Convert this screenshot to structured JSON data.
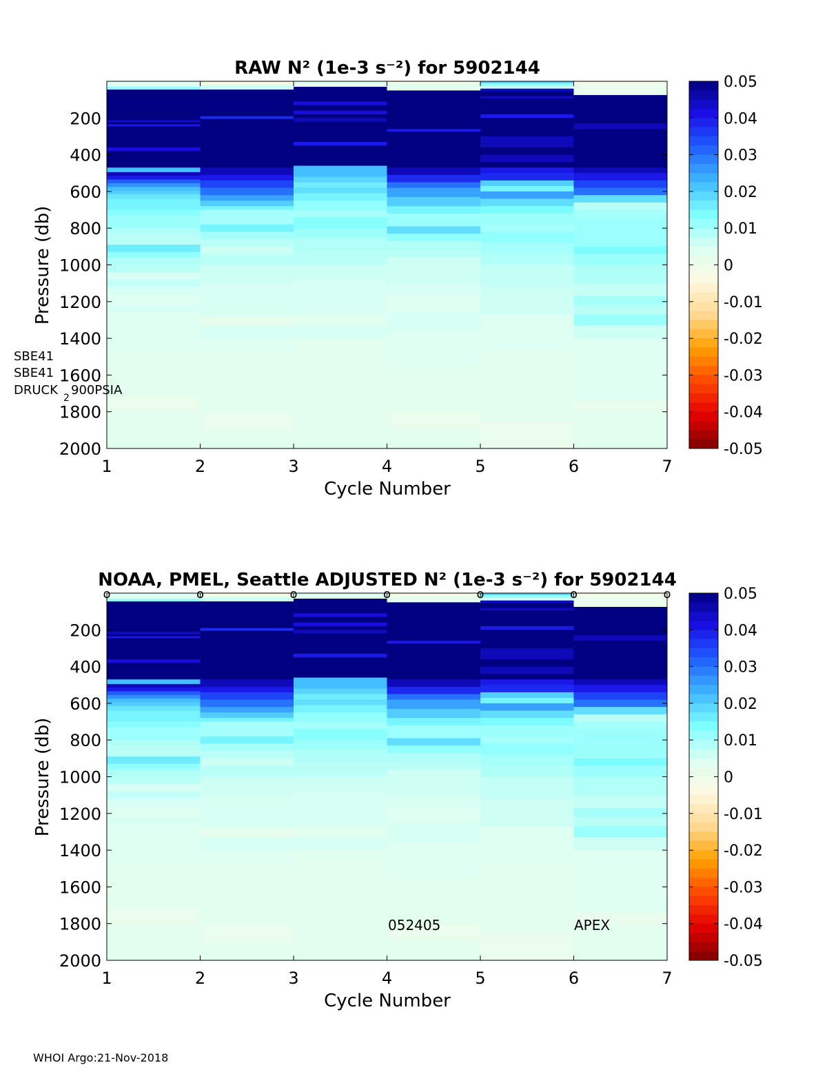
{
  "colorbar": {
    "ticks": [
      "0.05",
      "0.04",
      "0.03",
      "0.02",
      "0.01",
      "0",
      "-0.01",
      "-0.02",
      "-0.03",
      "-0.04",
      "-0.05"
    ],
    "stops": [
      "#7f0000",
      "#e30000",
      "#ff4800",
      "#ffa000",
      "#ffd890",
      "#fff8e0",
      "#dcfff2",
      "#80ffff",
      "#40b8ff",
      "#2060ff",
      "#1a10e8",
      "#000080"
    ]
  },
  "footer": "WHOI Argo:21-Nov-2018",
  "chart_data": [
    {
      "type": "heatmap",
      "title": "RAW N² (1e-3 s⁻²) for 5902144",
      "xlabel": "Cycle Number",
      "ylabel": "Pressure (db)",
      "xlim": [
        1,
        7
      ],
      "ylim": [
        2000,
        0
      ],
      "clim": [
        -0.05,
        0.05
      ],
      "x_ticks": [
        "1",
        "2",
        "3",
        "4",
        "5",
        "6",
        "7"
      ],
      "y_ticks": [
        "200",
        "400",
        "600",
        "800",
        "1000",
        "1200",
        "1400",
        "1600",
        "1800",
        "2000"
      ],
      "side_labels": [
        "SBE41",
        "SBE41",
        "DRUCK",
        "2",
        "900PSIA"
      ],
      "columns": [
        {
          "cycle": 1,
          "bands": [
            [
              0,
              30,
              0.004
            ],
            [
              30,
              45,
              0.012
            ],
            [
              45,
              210,
              0.05
            ],
            [
              210,
              225,
              0.045
            ],
            [
              225,
              235,
              0.05
            ],
            [
              235,
              245,
              0.04
            ],
            [
              245,
              360,
              0.05
            ],
            [
              360,
              380,
              0.042
            ],
            [
              380,
              470,
              0.05
            ],
            [
              470,
              495,
              0.022
            ],
            [
              495,
              515,
              0.045
            ],
            [
              515,
              535,
              0.04
            ],
            [
              535,
              555,
              0.032
            ],
            [
              555,
              575,
              0.027
            ],
            [
              575,
              595,
              0.022
            ],
            [
              595,
              615,
              0.02
            ],
            [
              615,
              640,
              0.017
            ],
            [
              640,
              700,
              0.015
            ],
            [
              700,
              730,
              0.013
            ],
            [
              730,
              800,
              0.011
            ],
            [
              800,
              830,
              0.009
            ],
            [
              830,
              890,
              0.008
            ],
            [
              890,
              930,
              0.016
            ],
            [
              930,
              960,
              0.012
            ],
            [
              960,
              1000,
              0.009
            ],
            [
              1000,
              1040,
              0.008
            ],
            [
              1040,
              1080,
              0.005
            ],
            [
              1080,
              1120,
              0.007
            ],
            [
              1120,
              1160,
              0.005
            ],
            [
              1160,
              1220,
              0.004
            ],
            [
              1220,
              1260,
              0.005
            ],
            [
              1260,
              1480,
              0.004
            ],
            [
              1480,
              1720,
              0.003
            ],
            [
              1720,
              1800,
              0.001
            ],
            [
              1800,
              2000,
              0.003
            ]
          ]
        },
        {
          "cycle": 2,
          "bands": [
            [
              0,
              20,
              -0.002
            ],
            [
              20,
              45,
              0.006
            ],
            [
              45,
              190,
              0.05
            ],
            [
              190,
              205,
              0.038
            ],
            [
              205,
              470,
              0.05
            ],
            [
              470,
              510,
              0.045
            ],
            [
              510,
              540,
              0.04
            ],
            [
              540,
              580,
              0.035
            ],
            [
              580,
              620,
              0.03
            ],
            [
              620,
              650,
              0.025
            ],
            [
              650,
              680,
              0.02
            ],
            [
              680,
              700,
              0.015
            ],
            [
              700,
              780,
              0.01
            ],
            [
              780,
              820,
              0.015
            ],
            [
              820,
              860,
              0.01
            ],
            [
              860,
              900,
              0.008
            ],
            [
              900,
              940,
              0.006
            ],
            [
              940,
              1000,
              0.008
            ],
            [
              1000,
              1100,
              0.006
            ],
            [
              1100,
              1280,
              0.005
            ],
            [
              1280,
              1330,
              0.002
            ],
            [
              1330,
              1400,
              0.005
            ],
            [
              1400,
              1480,
              0.004
            ],
            [
              1480,
              1810,
              0.003
            ],
            [
              1810,
              1900,
              0.001
            ],
            [
              1900,
              2000,
              0.003
            ]
          ]
        },
        {
          "cycle": 3,
          "bands": [
            [
              0,
              15,
              0.004
            ],
            [
              15,
              30,
              0.002
            ],
            [
              30,
              110,
              0.05
            ],
            [
              110,
              130,
              0.042
            ],
            [
              130,
              160,
              0.05
            ],
            [
              160,
              180,
              0.042
            ],
            [
              180,
              200,
              0.05
            ],
            [
              200,
              220,
              0.045
            ],
            [
              220,
              330,
              0.05
            ],
            [
              330,
              350,
              0.04
            ],
            [
              350,
              460,
              0.05
            ],
            [
              460,
              520,
              0.022
            ],
            [
              520,
              550,
              0.019
            ],
            [
              550,
              580,
              0.016
            ],
            [
              580,
              610,
              0.018
            ],
            [
              610,
              650,
              0.015
            ],
            [
              650,
              700,
              0.012
            ],
            [
              700,
              740,
              0.01
            ],
            [
              740,
              800,
              0.013
            ],
            [
              800,
              850,
              0.011
            ],
            [
              850,
              920,
              0.009
            ],
            [
              920,
              1000,
              0.008
            ],
            [
              1000,
              1080,
              0.006
            ],
            [
              1080,
              1270,
              0.005
            ],
            [
              1270,
              1330,
              0.003
            ],
            [
              1330,
              1400,
              0.005
            ],
            [
              1400,
              1490,
              0.003
            ],
            [
              1490,
              1800,
              0.003
            ],
            [
              1800,
              2000,
              0.003
            ]
          ]
        },
        {
          "cycle": 4,
          "bands": [
            [
              0,
              15,
              -0.002
            ],
            [
              15,
              25,
              0.004
            ],
            [
              25,
              50,
              0.002
            ],
            [
              50,
              260,
              0.05
            ],
            [
              260,
              275,
              0.04
            ],
            [
              275,
              470,
              0.05
            ],
            [
              470,
              510,
              0.045
            ],
            [
              510,
              550,
              0.038
            ],
            [
              550,
              580,
              0.03
            ],
            [
              580,
              630,
              0.025
            ],
            [
              630,
              680,
              0.02
            ],
            [
              680,
              720,
              0.015
            ],
            [
              720,
              790,
              0.011
            ],
            [
              790,
              830,
              0.018
            ],
            [
              830,
              870,
              0.012
            ],
            [
              870,
              920,
              0.009
            ],
            [
              920,
              960,
              0.008
            ],
            [
              960,
              1100,
              0.006
            ],
            [
              1100,
              1160,
              0.005
            ],
            [
              1160,
              1250,
              0.004
            ],
            [
              1250,
              1360,
              0.005
            ],
            [
              1360,
              1550,
              0.004
            ],
            [
              1550,
              1800,
              0.003
            ],
            [
              1800,
              1890,
              0.001
            ],
            [
              1890,
              2000,
              0.003
            ]
          ]
        },
        {
          "cycle": 5,
          "bands": [
            [
              0,
              10,
              0.02
            ],
            [
              10,
              25,
              0.012
            ],
            [
              25,
              40,
              0.006
            ],
            [
              40,
              55,
              0.045
            ],
            [
              55,
              80,
              0.05
            ],
            [
              80,
              95,
              0.045
            ],
            [
              95,
              180,
              0.05
            ],
            [
              180,
              200,
              0.04
            ],
            [
              200,
              300,
              0.05
            ],
            [
              300,
              360,
              0.045
            ],
            [
              360,
              400,
              0.05
            ],
            [
              400,
              440,
              0.045
            ],
            [
              440,
              470,
              0.05
            ],
            [
              470,
              500,
              0.04
            ],
            [
              500,
              540,
              0.038
            ],
            [
              540,
              570,
              0.02
            ],
            [
              570,
              600,
              0.015
            ],
            [
              600,
              640,
              0.025
            ],
            [
              640,
              680,
              0.018
            ],
            [
              680,
              720,
              0.014
            ],
            [
              720,
              780,
              0.011
            ],
            [
              780,
              820,
              0.01
            ],
            [
              820,
              880,
              0.012
            ],
            [
              880,
              940,
              0.01
            ],
            [
              940,
              1000,
              0.009
            ],
            [
              1000,
              1120,
              0.007
            ],
            [
              1120,
              1270,
              0.006
            ],
            [
              1270,
              1470,
              0.004
            ],
            [
              1470,
              1850,
              0.003
            ],
            [
              1850,
              2000,
              0.001
            ]
          ]
        },
        {
          "cycle": 6,
          "bands": [
            [
              0,
              15,
              -0.002
            ],
            [
              15,
              75,
              0.001
            ],
            [
              75,
              230,
              0.05
            ],
            [
              230,
              260,
              0.045
            ],
            [
              260,
              470,
              0.05
            ],
            [
              470,
              500,
              0.045
            ],
            [
              500,
              540,
              0.04
            ],
            [
              540,
              580,
              0.035
            ],
            [
              580,
              620,
              0.03
            ],
            [
              620,
              660,
              0.018
            ],
            [
              660,
              700,
              0.008
            ],
            [
              700,
              740,
              0.01
            ],
            [
              740,
              900,
              0.011
            ],
            [
              900,
              940,
              0.014
            ],
            [
              940,
              1000,
              0.011
            ],
            [
              1000,
              1100,
              0.009
            ],
            [
              1100,
              1170,
              0.007
            ],
            [
              1170,
              1220,
              0.01
            ],
            [
              1220,
              1270,
              0.008
            ],
            [
              1270,
              1330,
              0.011
            ],
            [
              1330,
              1400,
              0.006
            ],
            [
              1400,
              1740,
              0.004
            ],
            [
              1740,
              1800,
              0.001
            ],
            [
              1800,
              2000,
              0.003
            ]
          ]
        }
      ]
    },
    {
      "type": "heatmap",
      "title": "NOAA, PMEL, Seattle  ADJUSTED N² (1e-3 s⁻²) for 5902144",
      "xlabel": "Cycle Number",
      "ylabel": "Pressure (db)",
      "xlim": [
        1,
        7
      ],
      "ylim": [
        2000,
        0
      ],
      "clim": [
        -0.05,
        0.05
      ],
      "x_ticks": [
        "1",
        "2",
        "3",
        "4",
        "5",
        "6",
        "7"
      ],
      "y_ticks": [
        "200",
        "400",
        "600",
        "800",
        "1000",
        "1200",
        "1400",
        "1600",
        "1800",
        "2000"
      ],
      "marker_label": "o",
      "markers": [
        1,
        2,
        3,
        4,
        5,
        6,
        7
      ],
      "annotations": [
        {
          "x": 4,
          "y": 1810,
          "text": "052405"
        },
        {
          "x": 6,
          "y": 1810,
          "text": "APEX"
        }
      ],
      "columns": "same as raw panel"
    }
  ]
}
